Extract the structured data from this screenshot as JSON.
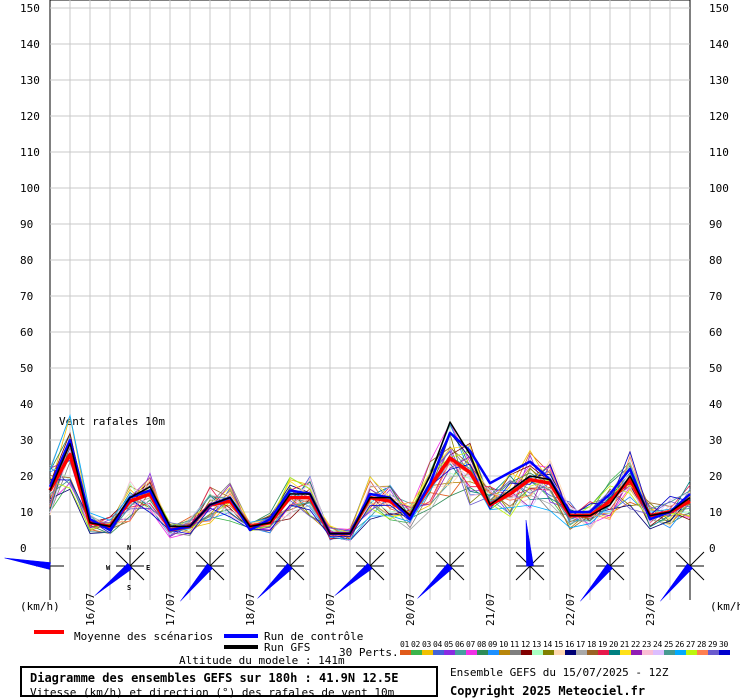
{
  "chart_data": {
    "type": "line",
    "title": "Diagramme des ensembles GEFS sur 180h : 41.9N 12.5E",
    "subtitle": "Vitesse (km/h) et direction (°) des rafales de vent 10m",
    "annotation": "Vent rafales 10m",
    "ylabel_left": "(km/h)",
    "ylabel_right": "(km/h)",
    "ylim": [
      0,
      150
    ],
    "yticks": [
      "0",
      "10",
      "20",
      "30",
      "40",
      "50",
      "60",
      "70",
      "80",
      "90",
      "100",
      "110",
      "120",
      "130",
      "140",
      "150"
    ],
    "day_labels": [
      "16/07",
      "17/07",
      "18/07",
      "19/07",
      "20/07",
      "21/07",
      "22/07",
      "23/07"
    ],
    "grid": true,
    "x_hours_step": 6,
    "series": [
      {
        "name": "Moyenne des scénarios",
        "color": "#ff0000",
        "values": [
          16,
          26,
          7,
          6,
          13,
          15,
          5,
          6,
          12,
          13,
          6,
          7,
          14,
          14,
          4,
          4,
          14,
          13,
          9,
          17,
          25,
          21,
          12,
          15,
          19,
          18,
          9,
          9,
          13,
          19,
          9,
          10,
          13
        ]
      },
      {
        "name": "Run de contrôle",
        "color": "#0000ff",
        "values": [
          17,
          30,
          8,
          5,
          14,
          16,
          5,
          6,
          12,
          14,
          5,
          8,
          16,
          15,
          4,
          4,
          15,
          14,
          8,
          18,
          32,
          27,
          18,
          21,
          24,
          19,
          10,
          10,
          15,
          22,
          8,
          10,
          15
        ]
      },
      {
        "name": "Run GFS",
        "color": "#000000",
        "values": [
          16,
          29,
          7,
          6,
          14,
          17,
          6,
          6,
          12,
          14,
          6,
          7,
          15,
          15,
          4,
          4,
          14,
          14,
          9,
          20,
          35,
          26,
          12,
          16,
          20,
          19,
          9,
          9,
          12,
          20,
          9,
          10,
          14
        ]
      }
    ],
    "perturbations": {
      "label": "30 Perts.",
      "ids": [
        "01",
        "02",
        "03",
        "04",
        "05",
        "06",
        "07",
        "08",
        "09",
        "10",
        "11",
        "12",
        "13",
        "14",
        "15",
        "16",
        "17",
        "18",
        "19",
        "20",
        "21",
        "22",
        "23",
        "24",
        "25",
        "26",
        "27",
        "28",
        "29",
        "30"
      ],
      "colors": [
        "#e05a1a",
        "#3cb44b",
        "#f0c000",
        "#4363d8",
        "#8a2be2",
        "#46a0a0",
        "#f032e6",
        "#2e8b57",
        "#1e90ff",
        "#b8860b",
        "#7f7f7f",
        "#800000",
        "#aaffc3",
        "#808000",
        "#ffd8b1",
        "#000075",
        "#a9a9a9",
        "#9a6324",
        "#e6194b",
        "#008080",
        "#ffe119",
        "#911eb4",
        "#fabed4",
        "#dcbeff",
        "#469990",
        "#00aaff",
        "#bcf60c",
        "#ff7f50",
        "#6a5acd",
        "#0000cd"
      ]
    },
    "wind_directions_deg": [
      100,
      50,
      40,
      45,
      50,
      45,
      175,
      40,
      40,
      40
    ],
    "compass": {
      "n": "N",
      "s": "S",
      "e": "E",
      "w": "W"
    }
  },
  "legend": {
    "mean_label": "Moyenne des scénarios",
    "control_label": "Run de contrôle",
    "gfs_label": "Run GFS",
    "altitude": "Altitude du modele : 141m",
    "perts_label": "30 Perts."
  },
  "footer": {
    "title": "Diagramme des ensembles GEFS sur 180h : 41.9N 12.5E",
    "subtitle": "Vitesse (km/h) et direction (°) des rafales de vent 10m",
    "ensemble": "Ensemble GEFS du 15/07/2025 - 12Z",
    "copyright": "Copyright 2025 Meteociel.fr"
  }
}
